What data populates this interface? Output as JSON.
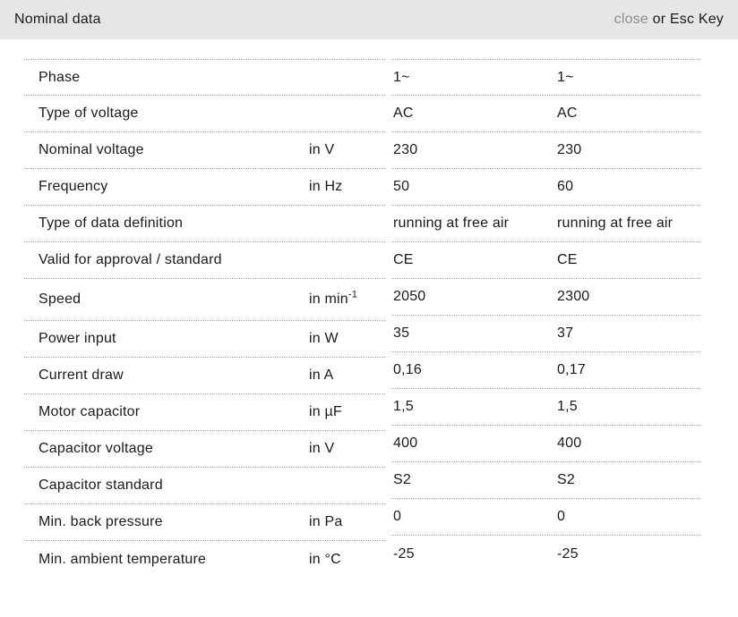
{
  "header": {
    "title": "Nominal data",
    "close_label": "close",
    "close_suffix": " or Esc Key"
  },
  "colors": {
    "header_bg": "#e6e6e6",
    "divider_dotted": "#a6a6a6",
    "text": "#1a1a1a",
    "close_link": "#8c8c8c"
  },
  "table": {
    "rows": [
      {
        "label": "Phase",
        "unit": "",
        "values": [
          "1~",
          "1~"
        ]
      },
      {
        "label": "Type of voltage",
        "unit": "",
        "values": [
          "AC",
          "AC"
        ]
      },
      {
        "label": "Nominal voltage",
        "unit": "in V",
        "values": [
          "230",
          "230"
        ]
      },
      {
        "label": "Frequency",
        "unit": "in Hz",
        "values": [
          "50",
          "60"
        ]
      },
      {
        "label": "Type of data definition",
        "unit": "",
        "values": [
          "running at free air",
          "running at free air"
        ]
      },
      {
        "label": "Valid for approval / standard",
        "unit": "",
        "values": [
          "CE",
          "CE"
        ]
      },
      {
        "label": "Speed",
        "unit": "in min",
        "unit_sup": "-1",
        "values": [
          "2050",
          "2300"
        ]
      },
      {
        "label": "Power input",
        "unit": "in W",
        "values": [
          "35",
          "37"
        ]
      },
      {
        "label": "Current draw",
        "unit": "in A",
        "values": [
          "0,16",
          "0,17"
        ]
      },
      {
        "label": "Motor capacitor",
        "unit": "in µF",
        "values": [
          "1,5",
          "1,5"
        ]
      },
      {
        "label": "Capacitor voltage",
        "unit": "in V",
        "values": [
          "400",
          "400"
        ]
      },
      {
        "label": "Capacitor standard",
        "unit": "",
        "values": [
          "S2",
          "S2"
        ]
      },
      {
        "label": "Min. back pressure",
        "unit": "in Pa",
        "values": [
          "0",
          "0"
        ]
      },
      {
        "label": "Min. ambient temperature",
        "unit": "in °C",
        "values": [
          "-25",
          "-25"
        ]
      }
    ]
  }
}
